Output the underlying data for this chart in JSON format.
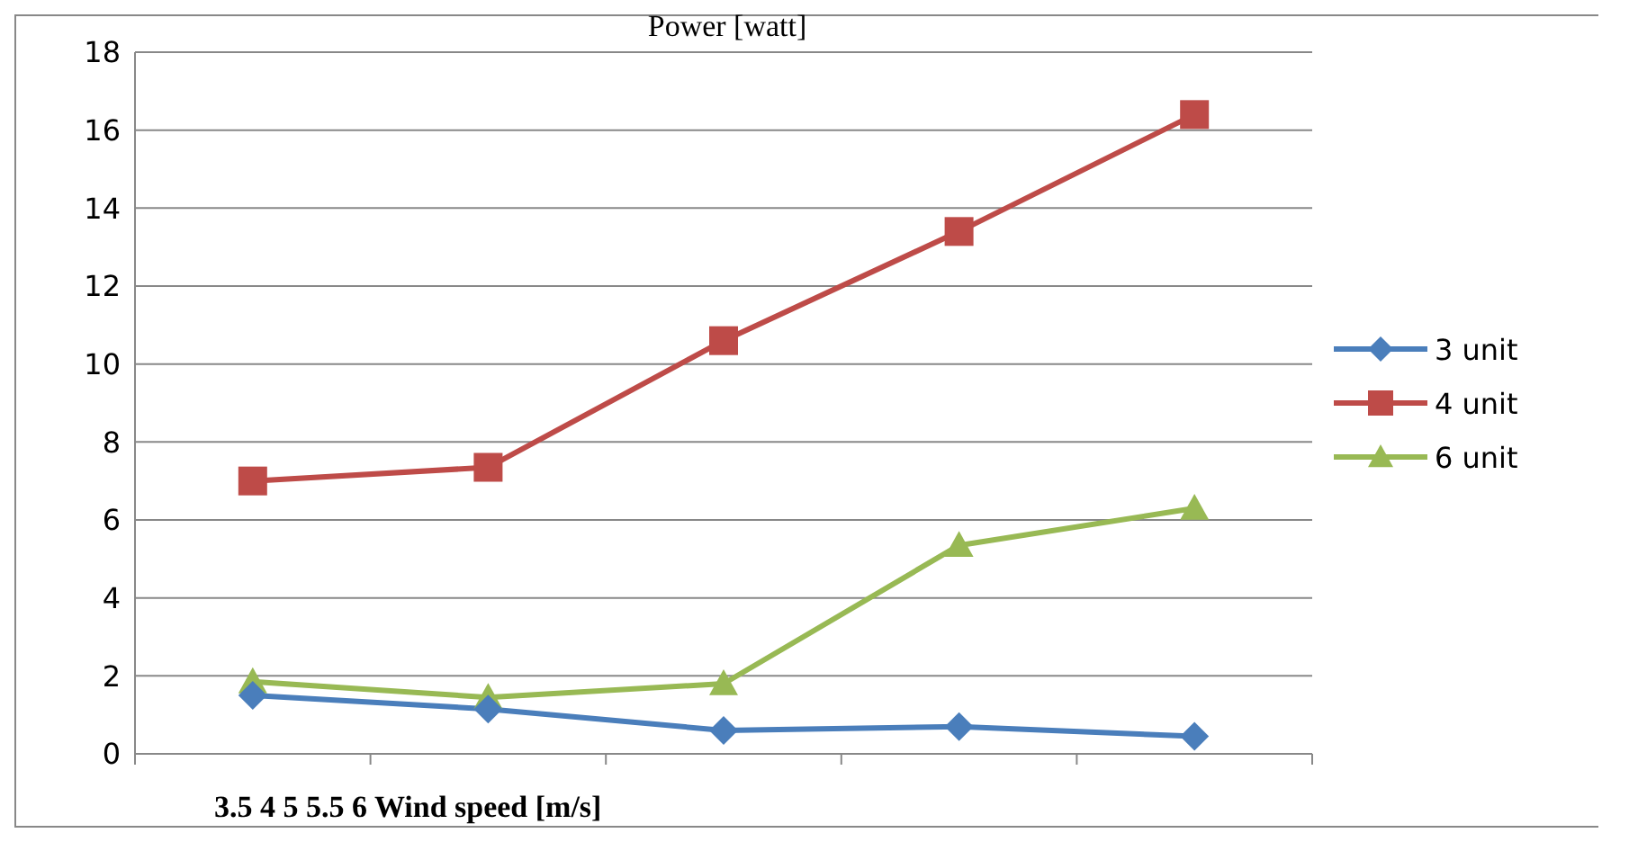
{
  "chart_data": {
    "type": "line",
    "title": "Power [watt]",
    "xlabel": "3.5 4 5 5.5 6 Wind speed [m/s]",
    "categories": [
      null,
      null,
      null,
      null,
      null
    ],
    "series": [
      {
        "name": "3 unit",
        "color": "#4a7ebb",
        "marker": "diamond",
        "values": [
          1.5,
          1.15,
          0.6,
          0.7,
          0.45
        ]
      },
      {
        "name": "4 unit",
        "color": "#be4b48",
        "marker": "square",
        "values": [
          7.0,
          7.35,
          10.6,
          13.4,
          16.4
        ]
      },
      {
        "name": "6 unit",
        "color": "#98b954",
        "marker": "triangle",
        "values": [
          1.85,
          1.45,
          1.8,
          5.35,
          6.3
        ]
      }
    ],
    "ylim": [
      0,
      18
    ],
    "yticks": [
      0,
      2,
      4,
      6,
      8,
      10,
      12,
      14,
      16,
      18
    ],
    "grid": "y",
    "legend": "right",
    "line_style": "solid"
  }
}
